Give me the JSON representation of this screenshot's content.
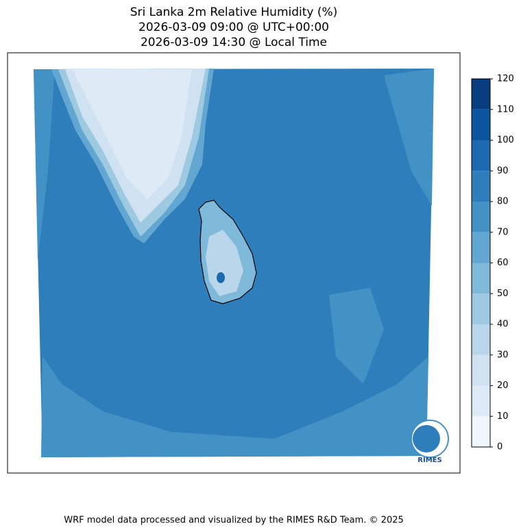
{
  "title": [
    "Sri Lanka 2m Relative Humidity (%)",
    "2026-03-09 09:00 @ UTC+00:00",
    "2026-03-09 14:30 @ Local Time"
  ],
  "colorbar": {
    "lim": [
      0,
      120
    ],
    "ticks": [
      0,
      10,
      20,
      30,
      40,
      50,
      60,
      70,
      80,
      90,
      100,
      110,
      120
    ],
    "colors": [
      "#f0f6fd",
      "#deebf7",
      "#d0e2f2",
      "#bad6eb",
      "#9ecae1",
      "#7fb9da",
      "#62a7d2",
      "#4292c6",
      "#2f7ebc",
      "#1b69af",
      "#0b559f",
      "#083d7f"
    ]
  },
  "logo": "RIMES",
  "footer": "WRF model data processed and visualized by the RIMES R&D Team. © 2025"
}
